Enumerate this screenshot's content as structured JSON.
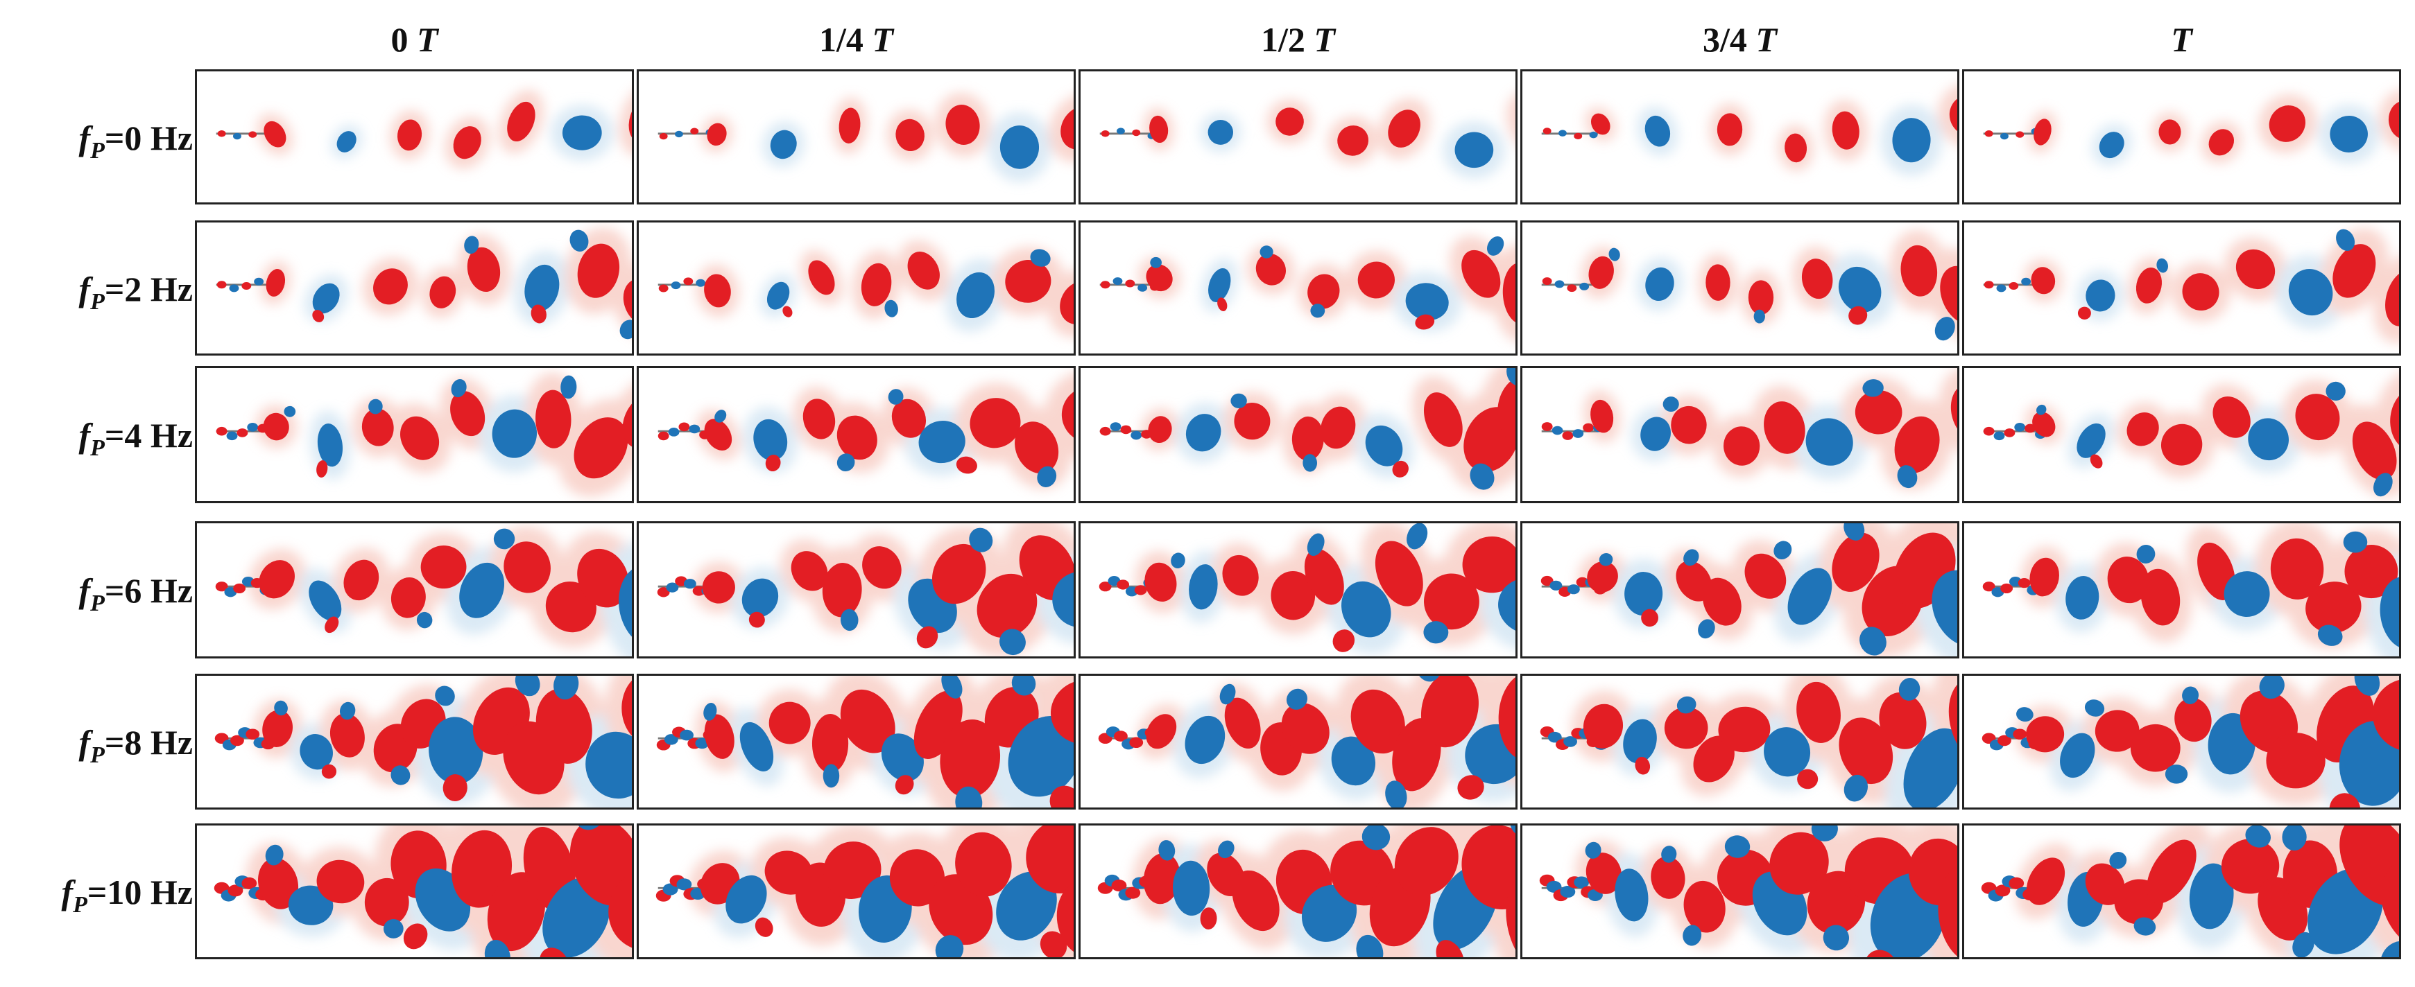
{
  "columns": [
    {
      "num": "0",
      "T": "T"
    },
    {
      "num": "1/4",
      "T": "T"
    },
    {
      "num": "1/2",
      "T": "T"
    },
    {
      "num": "3/4",
      "T": "T"
    },
    {
      "num": "",
      "T": "T"
    }
  ],
  "rows": [
    {
      "f": "f",
      "sub": "P",
      "rest": "=0 Hz"
    },
    {
      "f": "f",
      "sub": "P",
      "rest": "=2 Hz"
    },
    {
      "f": "f",
      "sub": "P",
      "rest": "=4 Hz"
    },
    {
      "f": "f",
      "sub": "P",
      "rest": "=6 Hz"
    },
    {
      "f": "f",
      "sub": "P",
      "rest": "=8 Hz"
    },
    {
      "f": "f",
      "sub": "P",
      "rest": "=10 Hz"
    }
  ],
  "colors": {
    "positive": "#e31e24",
    "negative": "#1f74b8",
    "halo_positive": "#f7c9c0",
    "halo_negative": "#cfe3f2",
    "frame": "#222222"
  }
}
